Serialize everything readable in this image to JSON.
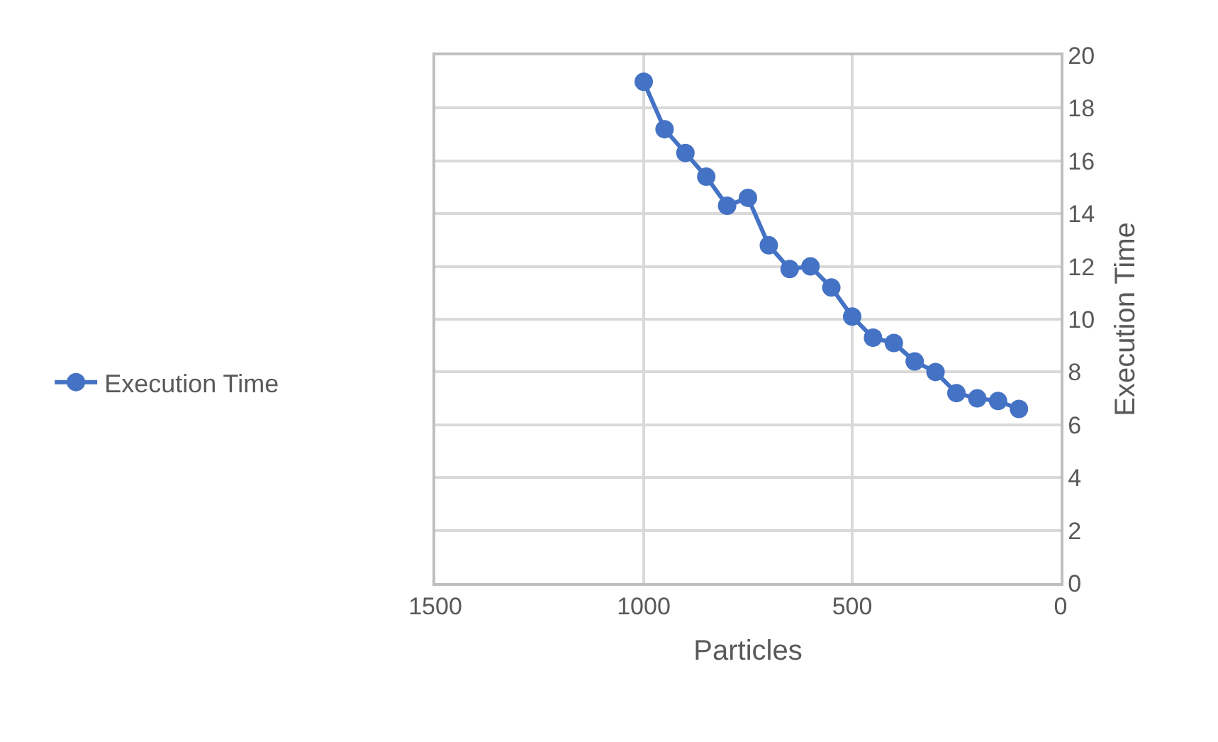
{
  "chart_data": {
    "type": "line",
    "xlabel": "Particles",
    "ylabel": "Execution Time",
    "x": [
      1000,
      950,
      900,
      850,
      800,
      750,
      700,
      650,
      600,
      550,
      500,
      450,
      400,
      350,
      300,
      250,
      200,
      150,
      100
    ],
    "series": [
      {
        "name": "Execution Time",
        "color": "#4472c4",
        "values": [
          19.0,
          17.2,
          16.3,
          15.4,
          14.3,
          14.6,
          12.8,
          11.9,
          12.0,
          11.2,
          10.1,
          9.3,
          9.1,
          8.4,
          8.0,
          7.2,
          7.0,
          6.9,
          6.6
        ]
      }
    ],
    "xlim": [
      1500,
      0
    ],
    "xticks": [
      1500,
      1000,
      500,
      0
    ],
    "ylim": [
      0,
      20
    ],
    "yticks": [
      0,
      2,
      4,
      6,
      8,
      10,
      12,
      14,
      16,
      18,
      20
    ],
    "grid": true,
    "legend": "left",
    "marker": "circle",
    "line_style": "solid"
  }
}
